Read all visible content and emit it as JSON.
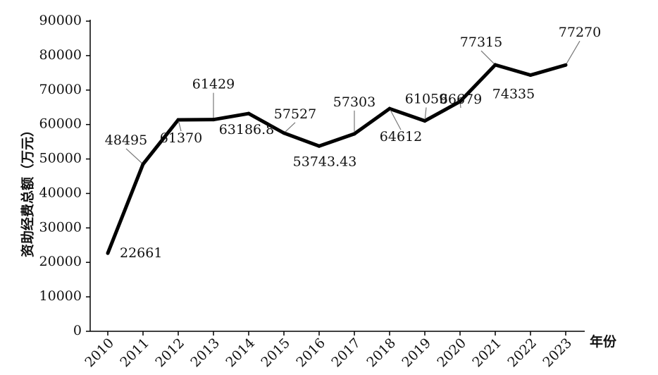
{
  "chart_data": {
    "type": "line",
    "title": "",
    "xlabel": "年份",
    "ylabel": "资助经费总额（万元）",
    "ylim": [
      0,
      90000
    ],
    "yticks": [
      0,
      10000,
      20000,
      30000,
      40000,
      50000,
      60000,
      70000,
      80000,
      90000
    ],
    "grid": false,
    "legend": "none",
    "line_color": "#000000",
    "categories": [
      "2010",
      "2011",
      "2012",
      "2013",
      "2014",
      "2015",
      "2016",
      "2017",
      "2018",
      "2019",
      "2020",
      "2021",
      "2022",
      "2023"
    ],
    "values": [
      22661,
      48495,
      61370,
      61429,
      63186.8,
      57527,
      53743.43,
      57303,
      64612,
      61059,
      66679,
      77315,
      74335,
      77270
    ],
    "data_labels": [
      "22661",
      "48495",
      "61370",
      "61429",
      "63186.8",
      "57527",
      "53743.43",
      "57303",
      "64612",
      "61059",
      "66679",
      "77315",
      "74335",
      "77270"
    ]
  }
}
